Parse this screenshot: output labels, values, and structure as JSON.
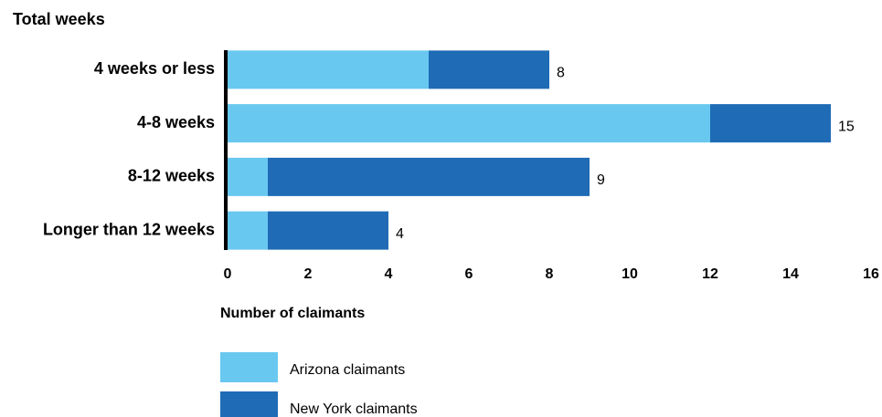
{
  "chart_data": {
    "type": "stacked_barh",
    "title": "Total weeks",
    "xlabel": "Number of claimants",
    "categories": [
      "4 weeks or less",
      "4-8 weeks",
      "8-12 weeks",
      "Longer than 12 weeks"
    ],
    "series": [
      {
        "name": "Arizona claimants",
        "color": "#68c8f0",
        "values": [
          5,
          12,
          1,
          1
        ]
      },
      {
        "name": "New York claimants",
        "color": "#1f6bb5",
        "values": [
          3,
          3,
          8,
          3
        ]
      }
    ],
    "totals": [
      8,
      15,
      9,
      4
    ],
    "xlim": [
      0,
      16
    ],
    "xticks": [
      0,
      2,
      4,
      6,
      8,
      10,
      12,
      14,
      16
    ],
    "grid": false
  }
}
